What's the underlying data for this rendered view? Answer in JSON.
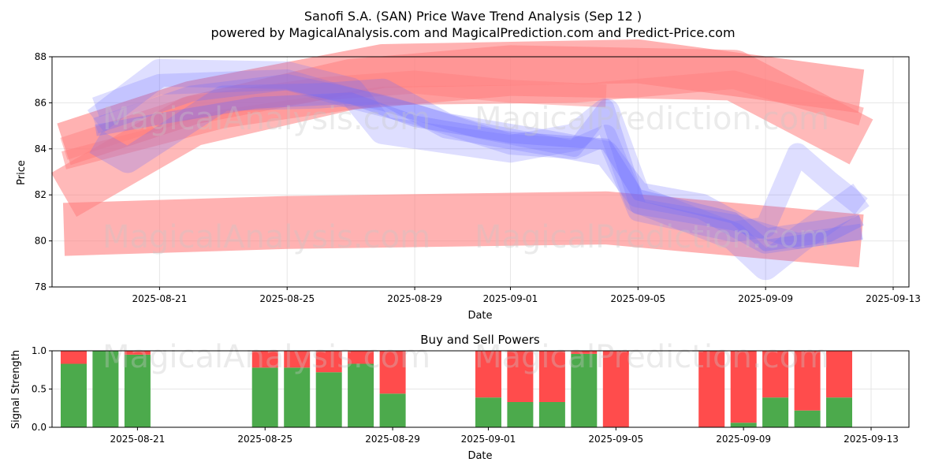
{
  "title_line1": "Sanofi S.A. (SAN) Price Wave Trend Analysis (Sep 12 )",
  "title_line2": "powered by MagicalAnalysis.com and MagicalPrediction.com and Predict-Price.com",
  "watermark_left": "MagicalAnalysis.com",
  "watermark_right": "MagicalPrediction.com",
  "colors": {
    "buy": "#4caa4c",
    "sell": "#ff4c4c",
    "red_band": "#ff7f7f",
    "blue_band": "#6b6bff",
    "grid": "#e6e6e6"
  },
  "chart_data": [
    {
      "type": "area",
      "title": "",
      "xlabel": "Date",
      "ylabel": "Price",
      "xlim": [
        "2025-08-18",
        "2025-09-13"
      ],
      "ylim": [
        78,
        88
      ],
      "x_ticks": [
        "2025-08-21",
        "2025-08-25",
        "2025-08-29",
        "2025-09-01",
        "2025-09-05",
        "2025-09-09",
        "2025-09-13"
      ],
      "y_ticks": [
        78,
        80,
        82,
        84,
        86,
        88
      ],
      "grid": true,
      "series": [
        {
          "color": "red",
          "opacity": 0.6,
          "points": [
            [
              "2025-08-18",
              80.5
            ],
            [
              "2025-08-25",
              80.8
            ],
            [
              "2025-09-04",
              81.0
            ],
            [
              "2025-09-12",
              80.0
            ]
          ],
          "width": 2.3
        },
        {
          "color": "red",
          "opacity": 0.6,
          "points": [
            [
              "2025-08-18",
              84.2
            ],
            [
              "2025-08-22",
              86.0
            ],
            [
              "2025-08-28",
              87.6
            ],
            [
              "2025-09-05",
              87.8
            ],
            [
              "2025-09-12",
              86.5
            ]
          ],
          "width": 1.9
        },
        {
          "color": "red",
          "opacity": 0.55,
          "points": [
            [
              "2025-08-18",
              82.0
            ],
            [
              "2025-08-22",
              85.2
            ],
            [
              "2025-08-27",
              86.8
            ],
            [
              "2025-09-01",
              87.4
            ],
            [
              "2025-09-08",
              87.2
            ],
            [
              "2025-09-12",
              84.3
            ]
          ],
          "width": 2.2
        },
        {
          "color": "red",
          "opacity": 0.5,
          "points": [
            [
              "2025-08-18",
              83.5
            ],
            [
              "2025-08-23",
              85.3
            ],
            [
              "2025-08-28",
              86.3
            ],
            [
              "2025-09-03",
              86.4
            ],
            [
              "2025-09-08",
              87.0
            ],
            [
              "2025-09-12",
              85.4
            ]
          ],
          "width": 0.8
        },
        {
          "color": "red",
          "opacity": 0.45,
          "points": [
            [
              "2025-08-18",
              84.0
            ],
            [
              "2025-08-22",
              85.8
            ],
            [
              "2025-08-26",
              86.6
            ],
            [
              "2025-08-29",
              86.9
            ],
            [
              "2025-09-01",
              86.5
            ],
            [
              "2025-09-04",
              86.3
            ]
          ],
          "width": 1.0
        },
        {
          "color": "blue",
          "opacity": 0.22,
          "points": [
            [
              "2025-08-19",
              85.2
            ],
            [
              "2025-08-21",
              87.3
            ],
            [
              "2025-08-25",
              87.2
            ],
            [
              "2025-08-27",
              86.5
            ],
            [
              "2025-08-28",
              84.8
            ],
            [
              "2025-09-01",
              84.0
            ],
            [
              "2025-09-03",
              84.5
            ],
            [
              "2025-09-04",
              85.6
            ],
            [
              "2025-09-05",
              81.8
            ],
            [
              "2025-09-08",
              80.2
            ],
            [
              "2025-09-09",
              78.9
            ],
            [
              "2025-09-10",
              80.0
            ],
            [
              "2025-09-12",
              82.0
            ]
          ],
          "width": 1.2
        },
        {
          "color": "blue",
          "opacity": 0.22,
          "points": [
            [
              "2025-08-19",
              85.8
            ],
            [
              "2025-08-21",
              86.8
            ],
            [
              "2025-08-25",
              87.0
            ],
            [
              "2025-08-27",
              86.2
            ],
            [
              "2025-08-29",
              85.5
            ],
            [
              "2025-09-01",
              84.2
            ],
            [
              "2025-09-03",
              84.0
            ],
            [
              "2025-09-04",
              84.6
            ],
            [
              "2025-09-05",
              81.3
            ],
            [
              "2025-09-08",
              80.4
            ],
            [
              "2025-09-09",
              80.6
            ],
            [
              "2025-09-10",
              83.8
            ],
            [
              "2025-09-11",
              82.6
            ],
            [
              "2025-09-12",
              81.5
            ]
          ],
          "width": 0.9
        },
        {
          "color": "blue",
          "opacity": 0.25,
          "points": [
            [
              "2025-08-19",
              84.3
            ],
            [
              "2025-08-20",
              83.5
            ],
            [
              "2025-08-23",
              86.2
            ],
            [
              "2025-08-26",
              86.3
            ],
            [
              "2025-08-28",
              86.5
            ],
            [
              "2025-08-30",
              85.0
            ],
            [
              "2025-09-02",
              84.3
            ],
            [
              "2025-09-04",
              83.8
            ],
            [
              "2025-09-05",
              82.0
            ],
            [
              "2025-09-07",
              81.5
            ],
            [
              "2025-09-09",
              80.0
            ],
            [
              "2025-09-12",
              80.6
            ]
          ],
          "width": 1.1
        },
        {
          "color": "blue",
          "opacity": 0.25,
          "points": [
            [
              "2025-08-19",
              85.0
            ],
            [
              "2025-08-22",
              86.4
            ],
            [
              "2025-08-25",
              86.9
            ],
            [
              "2025-08-28",
              86.0
            ],
            [
              "2025-08-31",
              84.8
            ],
            [
              "2025-09-03",
              84.0
            ],
            [
              "2025-09-04",
              85.8
            ],
            [
              "2025-09-05",
              81.5
            ],
            [
              "2025-09-08",
              80.8
            ],
            [
              "2025-09-10",
              80.0
            ],
            [
              "2025-09-12",
              80.4
            ]
          ],
          "width": 0.7
        },
        {
          "color": "blue",
          "opacity": 0.3,
          "points": [
            [
              "2025-08-19",
              84.8
            ],
            [
              "2025-08-21",
              85.3
            ],
            [
              "2025-08-24",
              86.0
            ],
            [
              "2025-08-27",
              86.2
            ],
            [
              "2025-08-29",
              85.2
            ],
            [
              "2025-09-01",
              84.5
            ],
            [
              "2025-09-04",
              84.2
            ],
            [
              "2025-09-05",
              82.0
            ],
            [
              "2025-09-08",
              81.0
            ],
            [
              "2025-09-09",
              79.8
            ],
            [
              "2025-09-11",
              80.2
            ],
            [
              "2025-09-12",
              80.9
            ]
          ],
          "width": 0.5
        }
      ]
    },
    {
      "type": "bar",
      "title": "Buy and Sell Powers",
      "xlabel": "Date",
      "ylabel": "Signal Strength",
      "xlim": [
        "2025-08-18",
        "2025-09-13"
      ],
      "ylim": [
        0,
        1.0
      ],
      "x_ticks": [
        "2025-08-21",
        "2025-08-25",
        "2025-08-29",
        "2025-09-01",
        "2025-09-05",
        "2025-09-09",
        "2025-09-13"
      ],
      "y_ticks": [
        "0.0",
        "0.5",
        "1.0"
      ],
      "grid": true,
      "categories": [
        "2025-08-19",
        "2025-08-20",
        "2025-08-21",
        "2025-08-25",
        "2025-08-26",
        "2025-08-27",
        "2025-08-28",
        "2025-08-29",
        "2025-09-01",
        "2025-09-02",
        "2025-09-03",
        "2025-09-04",
        "2025-09-05",
        "2025-09-08",
        "2025-09-09",
        "2025-09-10",
        "2025-09-11",
        "2025-09-12"
      ],
      "series": [
        {
          "name": "buy",
          "values": [
            0.83,
            1.0,
            0.95,
            0.78,
            0.78,
            0.72,
            0.83,
            0.44,
            0.39,
            0.33,
            0.33,
            0.96,
            0.0,
            0.0,
            0.06,
            0.39,
            0.22,
            0.39
          ]
        },
        {
          "name": "sell",
          "values": [
            0.17,
            0.0,
            0.05,
            0.22,
            0.22,
            0.28,
            0.17,
            0.56,
            0.61,
            0.67,
            0.67,
            0.04,
            1.0,
            1.0,
            0.94,
            0.61,
            0.78,
            0.61
          ]
        }
      ]
    }
  ]
}
